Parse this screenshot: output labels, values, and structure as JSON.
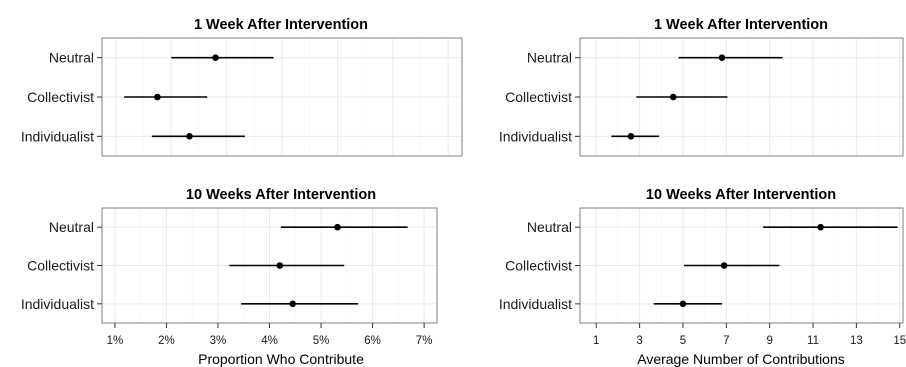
{
  "chart_data": [
    {
      "type": "dot-errorbar",
      "title": "1 Week After Intervention",
      "categories": [
        "Neutral",
        "Collectivist",
        "Individualist"
      ],
      "values": [
        2.8,
        1.75,
        2.33
      ],
      "lower": [
        2.0,
        1.15,
        1.65
      ],
      "upper": [
        3.85,
        2.65,
        3.33
      ],
      "xlim": [
        0.75,
        7.25
      ],
      "xticks": [
        1,
        2,
        3,
        4,
        5,
        6,
        7
      ],
      "tick_labels": [
        "1%",
        "2%",
        "3%",
        "4%",
        "5%",
        "6%",
        "7%"
      ],
      "xlabel": "",
      "grid": true
    },
    {
      "type": "dot-errorbar",
      "title": "1 Week After Intervention",
      "categories": [
        "Neutral",
        "Collectivist",
        "Individualist"
      ],
      "values": [
        6.8,
        4.55,
        2.6
      ],
      "lower": [
        4.8,
        2.85,
        1.7
      ],
      "upper": [
        9.6,
        7.05,
        3.9
      ],
      "xlim": [
        0.25,
        15.15
      ],
      "xticks": [
        1,
        3,
        5,
        7,
        9,
        11,
        13,
        15
      ],
      "tick_labels": [
        "1",
        "3",
        "5",
        "7",
        "9",
        "11",
        "13",
        "15"
      ],
      "xlabel": "",
      "grid": true
    },
    {
      "type": "dot-errorbar",
      "title": "10 Weeks After Intervention",
      "categories": [
        "Neutral",
        "Collectivist",
        "Individualist"
      ],
      "values": [
        5.32,
        4.2,
        4.45
      ],
      "lower": [
        4.22,
        3.22,
        3.45
      ],
      "upper": [
        6.68,
        5.45,
        5.72
      ],
      "xlim": [
        0.75,
        7.25
      ],
      "xticks": [
        1,
        2,
        3,
        4,
        5,
        6,
        7
      ],
      "tick_labels": [
        "1%",
        "2%",
        "3%",
        "4%",
        "5%",
        "6%",
        "7%"
      ],
      "xlabel": "Proportion Who Contribute",
      "grid": true
    },
    {
      "type": "dot-errorbar",
      "title": "10 Weeks After Intervention",
      "categories": [
        "Neutral",
        "Collectivist",
        "Individualist"
      ],
      "values": [
        11.35,
        6.9,
        5.0
      ],
      "lower": [
        8.7,
        5.05,
        3.65
      ],
      "upper": [
        14.9,
        9.45,
        6.8
      ],
      "xlim": [
        0.25,
        15.15
      ],
      "xticks": [
        1,
        3,
        5,
        7,
        9,
        11,
        13,
        15
      ],
      "tick_labels": [
        "1",
        "3",
        "5",
        "7",
        "9",
        "11",
        "13",
        "15"
      ],
      "xlabel": "Average Number of Contributions",
      "grid": true
    }
  ]
}
